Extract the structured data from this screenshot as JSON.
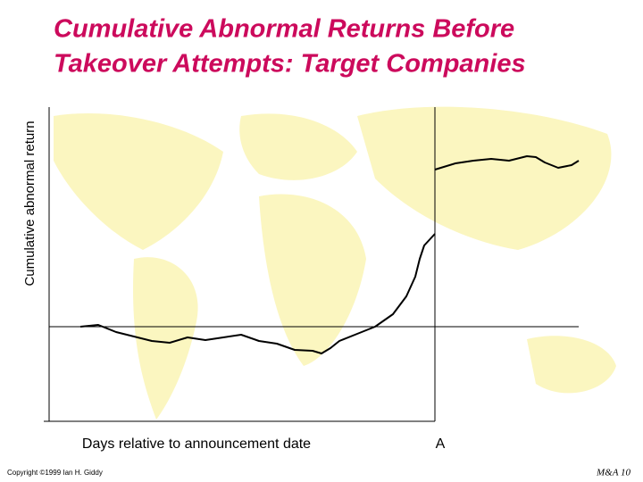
{
  "chart_data": {
    "type": "line",
    "title": [
      "Cumulative Abnormal Returns Before",
      "Takeover Attempts: Target Companies"
    ],
    "y_label": "Cumulative abnormal return",
    "x_label": "Days relative to announcement date",
    "event_label": "A",
    "event_x": 0,
    "xlim": [
      -432,
      233
    ],
    "ylim": [
      -106,
      246
    ],
    "x": [
      -397,
      -377,
      -357,
      -337,
      -317,
      -297,
      -277,
      -257,
      -237,
      -217,
      -197,
      -177,
      -157,
      -137,
      -127,
      -117,
      -107,
      -87,
      -67,
      -47,
      -32,
      -22,
      -17,
      -12,
      0,
      0,
      0,
      23,
      43,
      63,
      83,
      103,
      113,
      123,
      138,
      153,
      161
    ],
    "series": [
      {
        "color": "#000000",
        "values": [
          0,
          2,
          -6,
          -11,
          -16,
          -18,
          -12,
          -15,
          -12,
          -9,
          -16,
          -19,
          -26,
          -27,
          -30,
          -24,
          -16,
          -8,
          0,
          14,
          34,
          56,
          76,
          91,
          104,
          null,
          176,
          183,
          186,
          188,
          186,
          191,
          190,
          184,
          178,
          181,
          186
        ]
      }
    ],
    "footer_left": "Copyright ©1999 Ian H. Giddy",
    "footer_right": "M&A 10"
  }
}
